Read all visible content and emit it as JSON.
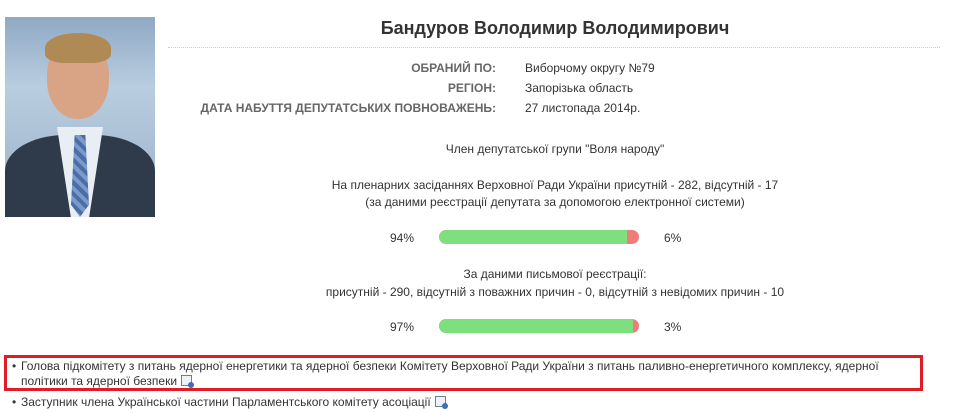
{
  "deputy": {
    "name": "Бандуров Володимир Володимирович"
  },
  "info": [
    {
      "label": "ОБРАНИЙ ПО:",
      "value": "Виборчому округу №79"
    },
    {
      "label": "РЕГІОН:",
      "value": "Запорізька область"
    },
    {
      "label": "ДАТА НАБУТТЯ ДЕПУТАТСЬКИХ ПОВНОВАЖЕНЬ:",
      "value": "27 листопада 2014р."
    }
  ],
  "group": "Член депутатської групи \"Воля народу\"",
  "plenary": {
    "line1": "На пленарних засіданнях Верховної Ради України присутній - 282, відсутній - 17",
    "line2": "(за даними реєстрації депутата за допомогою електронної системи)",
    "present_pct": "94%",
    "absent_pct": "6%",
    "present_fraction": 0.94
  },
  "written": {
    "line1": "За даними письмової реєстрації:",
    "line2": "присутній - 290, відсутній з поважних причин - 0, відсутній з невідомих причин - 10",
    "present_pct": "97%",
    "absent_pct": "3%",
    "present_fraction": 0.97
  },
  "posts": [
    {
      "bullet": "•",
      "text": "Голова підкомітету з питань ядерної енергетики та ядерної безпеки Комітету Верховної Ради України з питань паливно-енергетичного комплексу, ядерної політики та ядерної безпеки"
    },
    {
      "bullet": "•",
      "text": "Заступник члена Української частини Парламентського комітету асоціації"
    }
  ],
  "colors": {
    "present": "#7ddf7d",
    "absent": "#f07b7b",
    "highlight": "#e01c24"
  },
  "icons": {
    "post_document": "document-icon"
  }
}
